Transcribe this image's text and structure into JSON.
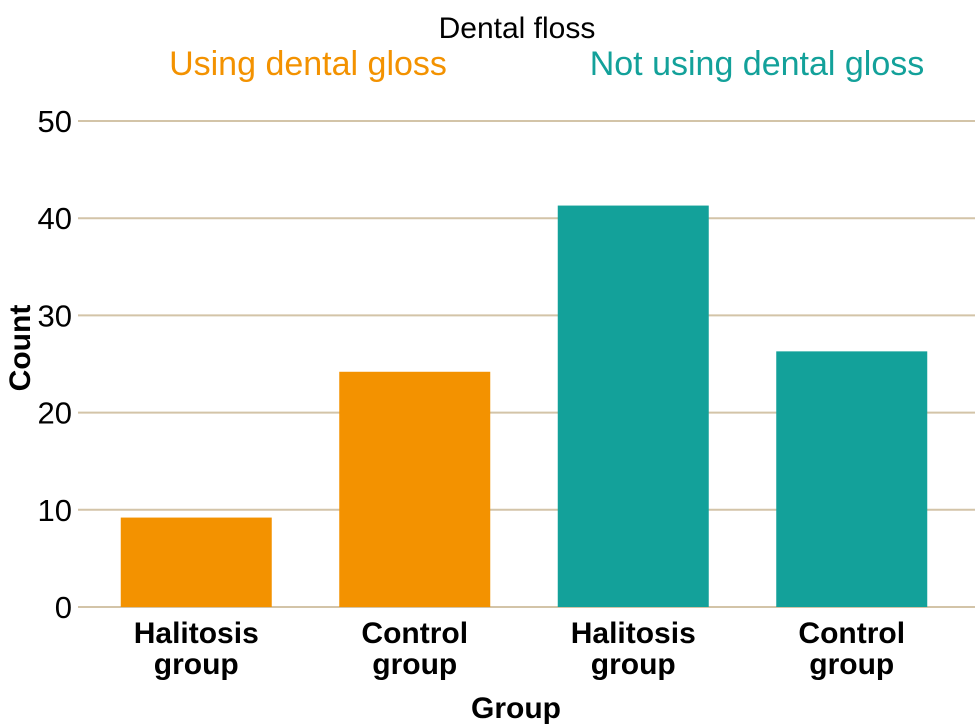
{
  "chart_data": {
    "type": "bar",
    "title": "Dental floss",
    "xlabel": "Group",
    "ylabel": "Count",
    "ylim": [
      0,
      50
    ],
    "yticks": [
      0,
      10,
      20,
      30,
      40,
      50
    ],
    "grid": true,
    "legend_placement": "top",
    "series": [
      {
        "name": "Using dental gloss",
        "color": "#f39200",
        "categories": [
          [
            "Halitosis",
            "group"
          ],
          [
            "Control",
            "group"
          ]
        ],
        "values": [
          9.2,
          24.2
        ]
      },
      {
        "name": "Not using dental gloss",
        "color": "#13a19a",
        "categories": [
          [
            "Halitosis",
            "group"
          ],
          [
            "Control",
            "group"
          ]
        ],
        "values": [
          41.3,
          26.3
        ]
      }
    ]
  }
}
